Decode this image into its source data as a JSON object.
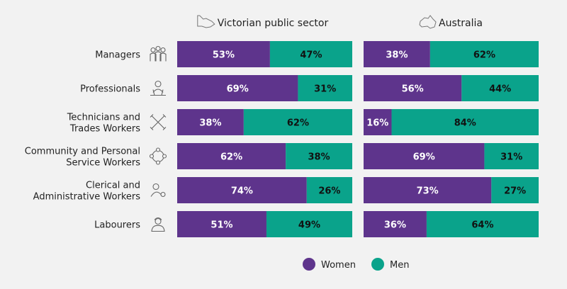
{
  "chart_data": {
    "type": "bar",
    "stacked": true,
    "percent": true,
    "categories": [
      "Managers",
      "Professionals",
      "Technicians and Trades Workers",
      "Community and Personal Service Workers",
      "Clerical and Administrative Workers",
      "Labourers"
    ],
    "category_lines": [
      [
        "Managers"
      ],
      [
        "Professionals"
      ],
      [
        "Technicians and",
        "Trades Workers"
      ],
      [
        "Community and Personal",
        "Service Workers"
      ],
      [
        "Clerical and",
        "Administrative Workers"
      ],
      [
        "Labourers"
      ]
    ],
    "category_icons": [
      "people-group-icon",
      "person-laptop-icon",
      "wrench-tools-icon",
      "community-circle-icon",
      "person-gear-icon",
      "worker-helmet-icon"
    ],
    "panels": [
      {
        "title": "Victorian public sector",
        "icon": "victoria-map-icon",
        "series": [
          {
            "name": "Women",
            "values": [
              53,
              69,
              38,
              62,
              74,
              51
            ]
          },
          {
            "name": "Men",
            "values": [
              47,
              31,
              62,
              38,
              26,
              49
            ]
          }
        ]
      },
      {
        "title": "Australia",
        "icon": "australia-map-icon",
        "series": [
          {
            "name": "Women",
            "values": [
              38,
              56,
              16,
              69,
              73,
              36
            ]
          },
          {
            "name": "Men",
            "values": [
              62,
              44,
              84,
              31,
              27,
              64
            ]
          }
        ]
      }
    ],
    "legend": {
      "position": "bottom-right",
      "items": [
        {
          "name": "Women",
          "color": "#5e348c"
        },
        {
          "name": "Men",
          "color": "#0aa38b"
        }
      ]
    },
    "colors": {
      "Women": "#5e348c",
      "Men": "#0aa38b",
      "background": "#f2f2f2"
    },
    "xlim": [
      0,
      100
    ],
    "grid": false
  }
}
